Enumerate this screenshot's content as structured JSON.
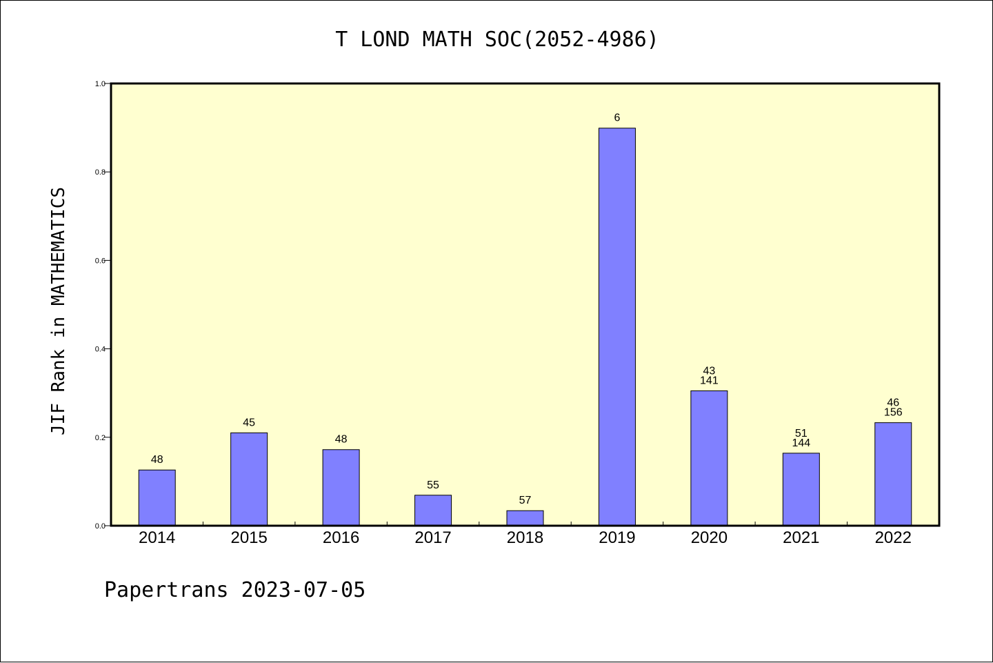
{
  "chart_data": {
    "type": "bar",
    "title": "T LOND MATH SOC(2052-4986)",
    "xlabel": "",
    "ylabel": "JIF Rank in MATHEMATICS",
    "ylim": [
      0,
      1.0
    ],
    "yticks": [
      "0.0",
      "0.2",
      "0.4",
      "0.6",
      "0.8",
      "1.0"
    ],
    "categories": [
      "2014",
      "2015",
      "2016",
      "2017",
      "2018",
      "2019",
      "2020",
      "2021",
      "2022"
    ],
    "values": [
      0.126,
      0.21,
      0.172,
      0.069,
      0.034,
      0.899,
      0.305,
      0.164,
      0.233
    ],
    "bar_labels": [
      [
        "48"
      ],
      [
        "45"
      ],
      [
        "48"
      ],
      [
        "55"
      ],
      [
        "57"
      ],
      [
        "6"
      ],
      [
        "43",
        "141"
      ],
      [
        "51",
        "144"
      ],
      [
        "46",
        "156"
      ]
    ],
    "grid": false,
    "colors": {
      "bar_fill": "#8080ff",
      "plot_background": "#ffffd0",
      "axis": "#000000"
    }
  },
  "footer": "Papertrans 2023-07-05"
}
